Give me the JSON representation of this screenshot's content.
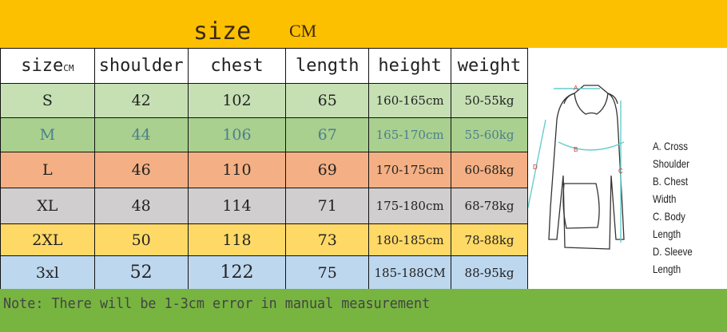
{
  "header": {
    "title": "size",
    "unit": "CM"
  },
  "table": {
    "columns": [
      "size",
      "shoulder",
      "chest",
      "length",
      "height",
      "weight"
    ],
    "size_unit": "CM",
    "rows": [
      {
        "size": "S",
        "shoulder": "42",
        "chest": "102",
        "length": "65",
        "height": "160-165cm",
        "weight": "50-55kg",
        "color": "#c6e0b4"
      },
      {
        "size": "M",
        "shoulder": "44",
        "chest": "106",
        "length": "67",
        "height": "165-170cm",
        "weight": "55-60kg",
        "color": "#a9d08e"
      },
      {
        "size": "L",
        "shoulder": "46",
        "chest": "110",
        "length": "69",
        "height": "170-175cm",
        "weight": "60-68kg",
        "color": "#f4b084"
      },
      {
        "size": "XL",
        "shoulder": "48",
        "chest": "114",
        "length": "71",
        "height": "175-180cm",
        "weight": "68-78kg",
        "color": "#d0cece"
      },
      {
        "size": "2XL",
        "shoulder": "50",
        "chest": "118",
        "length": "73",
        "height": "180-185cm",
        "weight": "78-88kg",
        "color": "#ffd966"
      },
      {
        "size": "3xl",
        "shoulder": "52",
        "chest": "122",
        "length": "75",
        "height": "185-188CM",
        "weight": "88-95kg",
        "color": "#bdd7ee"
      }
    ]
  },
  "diagram": {
    "markers": [
      "A",
      "B",
      "C",
      "D"
    ],
    "legend": [
      "A. Cross Shoulder",
      "B. Chest Width",
      "C. Body Length",
      "D. Sleeve Length"
    ]
  },
  "footer": {
    "note": "Note: There will be 1-3cm error in manual measurement"
  }
}
